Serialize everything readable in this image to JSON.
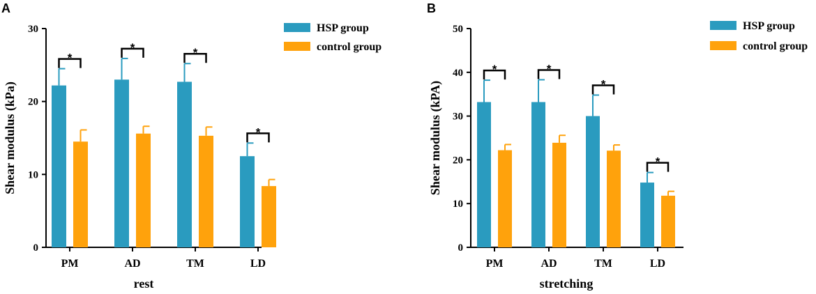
{
  "chart_data": [
    {
      "type": "bar",
      "panel_label": "A",
      "title": "",
      "xlabel": "rest",
      "ylabel": "Shear modulus (kPa)",
      "ylim": [
        0,
        30
      ],
      "yticks": [
        "0",
        "10",
        "20",
        "30"
      ],
      "categories": [
        "PM",
        "AD",
        "TM",
        "LD"
      ],
      "series": [
        {
          "name": "HSP group",
          "color": "#2a9bbf",
          "values": [
            22.2,
            23.0,
            22.7,
            12.5
          ],
          "errors": [
            2.3,
            2.9,
            2.5,
            1.8
          ]
        },
        {
          "name": "control group",
          "color": "#ffa20c",
          "values": [
            14.5,
            15.6,
            15.3,
            8.4
          ],
          "errors": [
            1.6,
            1.0,
            1.2,
            0.9
          ]
        }
      ],
      "significance": [
        "*",
        "*",
        "*",
        "*"
      ],
      "legend_position": "top-right",
      "grid": false
    },
    {
      "type": "bar",
      "panel_label": "B",
      "title": "",
      "xlabel": "stretching",
      "ylabel": "Shear modulus (kPA)",
      "ylim": [
        0,
        50
      ],
      "yticks": [
        "0",
        "10",
        "20",
        "30",
        "40",
        "50"
      ],
      "categories": [
        "PM",
        "AD",
        "TM",
        "LD"
      ],
      "series": [
        {
          "name": "HSP group",
          "color": "#2a9bbf",
          "values": [
            33.2,
            33.2,
            30.0,
            14.8
          ],
          "errors": [
            5.0,
            5.1,
            4.8,
            2.3
          ]
        },
        {
          "name": "control group",
          "color": "#ffa20c",
          "values": [
            22.2,
            23.9,
            22.1,
            11.8
          ],
          "errors": [
            1.3,
            1.7,
            1.3,
            1.0
          ]
        }
      ],
      "significance": [
        "*",
        "*",
        "*",
        "*"
      ],
      "legend_position": "top-right",
      "grid": false
    }
  ]
}
